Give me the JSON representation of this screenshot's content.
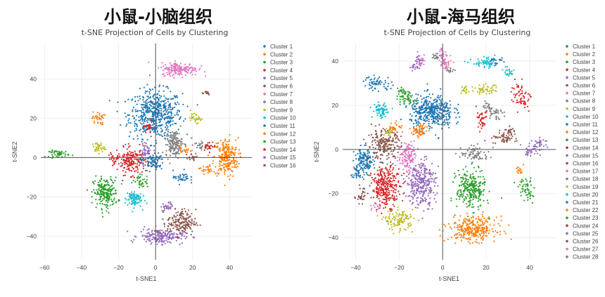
{
  "headings": [
    "小鼠-小脑组织",
    "小鼠-海马组织"
  ],
  "chart_data": [
    {
      "type": "scatter",
      "title": "t-SNE Projection of Cells by Clustering",
      "xlabel": "t-SNE1",
      "ylabel": "t-SNE2",
      "xlim": [
        -62,
        52
      ],
      "ylim": [
        -52,
        58
      ],
      "xticks": [
        -60,
        -40,
        -20,
        0,
        20,
        40
      ],
      "yticks": [
        -40,
        -20,
        0,
        20,
        40
      ],
      "grid": true,
      "legend_position": "right",
      "series": [
        {
          "name": "Cluster 1",
          "color": "#1f77b4",
          "blobs": [
            [
              0,
              22,
              13,
              11,
              900
            ]
          ]
        },
        {
          "name": "Cluster 2",
          "color": "#ff7f0e",
          "blobs": [
            [
              38,
              0,
              6,
              9,
              400
            ],
            [
              -31,
              20,
              3,
              3,
              60
            ],
            [
              27,
              -6,
              3,
              2,
              40
            ]
          ]
        },
        {
          "name": "Cluster 3",
          "color": "#2ca02c",
          "blobs": [
            [
              -27,
              -18,
              6,
              7,
              350
            ],
            [
              -52,
              2,
              5,
              1.5,
              80
            ]
          ]
        },
        {
          "name": "Cluster 4",
          "color": "#d62728",
          "blobs": [
            [
              -13,
              -2,
              7,
              6,
              300
            ],
            [
              -4,
              15,
              2,
              3,
              50
            ]
          ]
        },
        {
          "name": "Cluster 5",
          "color": "#9467bd",
          "blobs": [
            [
              3,
              -40,
              11,
              3.5,
              330
            ],
            [
              6,
              -25,
              3,
              2,
              50
            ]
          ]
        },
        {
          "name": "Cluster 6",
          "color": "#8c564b",
          "blobs": [
            [
              14,
              -33,
              7,
              6,
              280
            ],
            [
              27,
              33,
              3,
              1,
              25
            ]
          ]
        },
        {
          "name": "Cluster 7",
          "color": "#e377c2",
          "blobs": [
            [
              13,
              45,
              9,
              3,
              300
            ]
          ]
        },
        {
          "name": "Cluster 8",
          "color": "#7f7f7f",
          "blobs": [
            [
              10,
              7,
              4,
              6,
              250
            ],
            [
              24,
              6,
              3,
              2,
              40
            ]
          ]
        },
        {
          "name": "Cluster 9",
          "color": "#bcbd22",
          "blobs": [
            [
              -31,
              5,
              3,
              2.5,
              60
            ],
            [
              22,
              20,
              3,
              2,
              50
            ]
          ]
        },
        {
          "name": "Cluster 10",
          "color": "#17becf",
          "blobs": [
            [
              -12,
              -21,
              4,
              4,
              150
            ]
          ]
        },
        {
          "name": "Cluster 11",
          "color": "#1f77b4",
          "blobs": [
            [
              -2,
              -2,
              6,
              4,
              150
            ],
            [
              14,
              -10,
              4,
              3,
              60
            ]
          ]
        },
        {
          "name": "Cluster 12",
          "color": "#ff7f0e",
          "blobs": [
            [
              16,
              4,
              3,
              2,
              40
            ]
          ]
        },
        {
          "name": "Cluster 13",
          "color": "#2ca02c",
          "blobs": [
            [
              -8,
              -12,
              4,
              3,
              60
            ]
          ]
        },
        {
          "name": "Cluster 14",
          "color": "#d62728",
          "blobs": [
            [
              -22,
              0,
              3,
              3,
              40
            ],
            [
              29,
              6,
              3,
              2,
              40
            ]
          ]
        },
        {
          "name": "Cluster 15",
          "color": "#9467bd",
          "blobs": [
            [
              -5,
              4,
              3,
              3,
              60
            ]
          ]
        },
        {
          "name": "Cluster 16",
          "color": "#8c564b",
          "blobs": [
            [
              20,
              0,
              3,
              2,
              30
            ]
          ]
        }
      ]
    },
    {
      "type": "scatter",
      "title": "t-SNE Projection of Cells by Clustering",
      "xlabel": "t-SNE1",
      "ylabel": "t-SNE2",
      "xlim": [
        -46,
        52
      ],
      "ylim": [
        -50,
        48
      ],
      "xticks": [
        -40,
        -20,
        0,
        20,
        40
      ],
      "yticks": [
        -40,
        -20,
        0,
        20,
        40
      ],
      "grid": true,
      "legend_position": "right",
      "series": [
        {
          "name": "Cluster 1",
          "color": "#1f77b4",
          "blobs": [
            [
              -5,
              17,
              9,
              7,
              700
            ]
          ]
        },
        {
          "name": "Cluster 2",
          "color": "#ff7f0e",
          "blobs": [
            [
              14,
              -36,
              10,
              5,
              500
            ]
          ]
        },
        {
          "name": "Cluster 3",
          "color": "#2ca02c",
          "blobs": [
            [
              13,
              -18,
              6,
              8,
              450
            ]
          ]
        },
        {
          "name": "Cluster 4",
          "color": "#d62728",
          "blobs": [
            [
              -26,
              -17,
              6,
              8,
              500
            ]
          ]
        },
        {
          "name": "Cluster 5",
          "color": "#9467bd",
          "blobs": [
            [
              -10,
              -15,
              6,
              10,
              500
            ]
          ]
        },
        {
          "name": "Cluster 6",
          "color": "#8c564b",
          "blobs": [
            [
              -27,
              2,
              7,
              6,
              350
            ]
          ]
        },
        {
          "name": "Cluster 7",
          "color": "#e377c2",
          "blobs": [
            [
              -16,
              -3,
              4,
              7,
              200
            ],
            [
              -10,
              40,
              2,
              3,
              40
            ]
          ]
        },
        {
          "name": "Cluster 8",
          "color": "#7f7f7f",
          "blobs": [
            [
              15,
              -2,
              6,
              3,
              120
            ],
            [
              -3,
              42,
              2,
              2,
              30
            ]
          ]
        },
        {
          "name": "Cluster 9",
          "color": "#bcbd22",
          "blobs": [
            [
              -20,
              -32,
              6,
              4,
              200
            ],
            [
              20,
              27,
              5,
              2,
              80
            ]
          ]
        },
        {
          "name": "Cluster 10",
          "color": "#17becf",
          "blobs": [
            [
              -29,
              18,
              3,
              3,
              70
            ],
            [
              20,
              39,
              6,
              2,
              100
            ]
          ]
        },
        {
          "name": "Cluster 11",
          "color": "#1f77b4",
          "blobs": [
            [
              -36,
              -6,
              4,
              6,
              250
            ],
            [
              -30,
              30,
              6,
              3,
              100
            ]
          ]
        },
        {
          "name": "Cluster 12",
          "color": "#ff7f0e",
          "blobs": [
            [
              -10,
              9,
              3,
              3,
              60
            ],
            [
              -22,
              10,
              3,
              2,
              50
            ]
          ]
        },
        {
          "name": "Cluster 13",
          "color": "#2ca02c",
          "blobs": [
            [
              -18,
              25,
              3,
              4,
              80
            ],
            [
              38,
              -17,
              3,
              3,
              50
            ]
          ]
        },
        {
          "name": "Cluster 14",
          "color": "#d62728",
          "blobs": [
            [
              35,
              25,
              3,
              5,
              70
            ],
            [
              18,
              12,
              2,
              3,
              40
            ]
          ]
        },
        {
          "name": "Cluster 15",
          "color": "#9467bd",
          "blobs": [
            [
              -11,
              40,
              2,
              3,
              30
            ],
            [
              41,
              0,
              4,
              3,
              60
            ]
          ]
        },
        {
          "name": "Cluster 16",
          "color": "#8c564b",
          "blobs": [
            [
              28,
              5,
              5,
              2,
              80
            ],
            [
              -37,
              -20,
              2,
              3,
              30
            ]
          ]
        },
        {
          "name": "Cluster 17",
          "color": "#e377c2",
          "blobs": [
            [
              0,
              42,
              2,
              4,
              60
            ],
            [
              -30,
              -26,
              2,
              2,
              20
            ]
          ]
        },
        {
          "name": "Cluster 18",
          "color": "#7f7f7f",
          "blobs": [
            [
              24,
              17,
              3,
              3,
              60
            ],
            [
              3,
              36,
              2,
              1,
              20
            ]
          ]
        },
        {
          "name": "Cluster 19",
          "color": "#bcbd22",
          "blobs": [
            [
              -25,
              8,
              2,
              2,
              30
            ],
            [
              10,
              27,
              2,
              2,
              30
            ]
          ]
        },
        {
          "name": "Cluster 20",
          "color": "#17becf",
          "blobs": [
            [
              -28,
              17,
              2,
              3,
              40
            ],
            [
              30,
              35,
              3,
              2,
              40
            ]
          ]
        },
        {
          "name": "Cluster 21",
          "color": "#1f77b4",
          "blobs": [
            [
              -40,
              -10,
              2,
              3,
              40
            ],
            [
              25,
              40,
              3,
              2,
              30
            ]
          ]
        },
        {
          "name": "Cluster 22",
          "color": "#ff7f0e",
          "blobs": [
            [
              -12,
              8,
              2,
              2,
              30
            ],
            [
              36,
              -10,
              2,
              3,
              30
            ]
          ]
        },
        {
          "name": "Cluster 23",
          "color": "#2ca02c",
          "blobs": [
            [
              40,
              -20,
              2,
              4,
              40
            ],
            [
              -15,
              22,
              2,
              2,
              30
            ]
          ]
        },
        {
          "name": "Cluster 24",
          "color": "#d62728",
          "blobs": [
            [
              18,
              16,
              2,
              2,
              30
            ],
            [
              38,
              22,
              2,
              3,
              40
            ]
          ]
        },
        {
          "name": "Cluster 25",
          "color": "#9467bd",
          "blobs": [
            [
              -13,
              38,
              2,
              2,
              20
            ],
            [
              45,
              3,
              3,
              2,
              40
            ]
          ]
        },
        {
          "name": "Cluster 26",
          "color": "#8c564b",
          "blobs": [
            [
              30,
              8,
              3,
              2,
              40
            ],
            [
              -38,
              -22,
              2,
              2,
              20
            ]
          ]
        },
        {
          "name": "Cluster 27",
          "color": "#e377c2",
          "blobs": [
            [
              2,
              38,
              2,
              3,
              40
            ]
          ]
        },
        {
          "name": "Cluster 28",
          "color": "#7f7f7f",
          "blobs": [
            [
              20,
              20,
              2,
              2,
              30
            ]
          ]
        }
      ]
    }
  ]
}
